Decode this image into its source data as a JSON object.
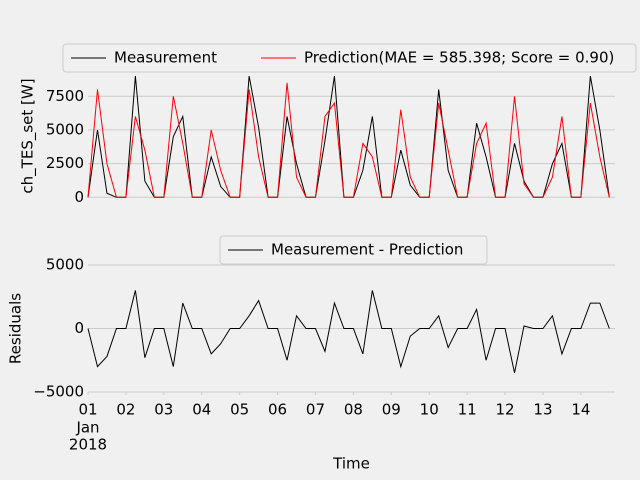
{
  "chart_data": [
    {
      "type": "line",
      "y_label": "ch_TES_set [W]",
      "x": [
        1,
        1.25,
        1.5,
        1.75,
        2,
        2.25,
        2.5,
        2.75,
        3,
        3.25,
        3.5,
        3.75,
        4,
        4.25,
        4.5,
        4.75,
        5,
        5.25,
        5.5,
        5.75,
        6,
        6.25,
        6.5,
        6.75,
        7,
        7.25,
        7.5,
        7.75,
        8,
        8.25,
        8.5,
        8.75,
        9,
        9.25,
        9.5,
        9.75,
        10,
        10.25,
        10.5,
        10.75,
        11,
        11.25,
        11.5,
        11.75,
        12,
        12.25,
        12.5,
        12.75,
        13,
        13.25,
        13.5,
        13.75,
        14,
        14.25,
        14.5,
        14.75
      ],
      "series": [
        {
          "name": "Measurement",
          "color": "#000000",
          "values": [
            0,
            5000,
            300,
            0,
            0,
            9000,
            1200,
            0,
            0,
            4500,
            6000,
            0,
            0,
            3000,
            800,
            0,
            0,
            9000,
            5200,
            0,
            0,
            6000,
            2500,
            0,
            0,
            4200,
            9000,
            0,
            0,
            2000,
            6000,
            0,
            0,
            3500,
            900,
            0,
            0,
            8000,
            2000,
            0,
            0,
            5500,
            3000,
            0,
            0,
            4000,
            1200,
            0,
            0,
            2500,
            4000,
            0,
            0,
            9000,
            5000,
            0
          ]
        },
        {
          "name": "Prediction(MAE = 585.398; Score = 0.90)",
          "color": "#ff0000",
          "values": [
            0,
            8000,
            2500,
            0,
            0,
            6000,
            3500,
            0,
            0,
            7500,
            4000,
            0,
            0,
            5000,
            2000,
            0,
            0,
            8000,
            3000,
            0,
            0,
            8500,
            1500,
            0,
            0,
            6000,
            7000,
            0,
            0,
            4000,
            3000,
            0,
            0,
            6500,
            1500,
            0,
            0,
            7000,
            3500,
            0,
            0,
            4000,
            5500,
            0,
            0,
            7500,
            1000,
            0,
            0,
            1500,
            6000,
            0,
            0,
            7000,
            3000,
            0
          ]
        }
      ],
      "xlim": [
        1,
        14.9
      ],
      "ylim": [
        -200,
        9300
      ],
      "yticks": [
        0,
        2500,
        5000,
        7500
      ],
      "grid": true
    },
    {
      "type": "line",
      "y_label": "Residuals",
      "x_label": "Time",
      "x": [
        1,
        1.25,
        1.5,
        1.75,
        2,
        2.25,
        2.5,
        2.75,
        3,
        3.25,
        3.5,
        3.75,
        4,
        4.25,
        4.5,
        4.75,
        5,
        5.25,
        5.5,
        5.75,
        6,
        6.25,
        6.5,
        6.75,
        7,
        7.25,
        7.5,
        7.75,
        8,
        8.25,
        8.5,
        8.75,
        9,
        9.25,
        9.5,
        9.75,
        10,
        10.25,
        10.5,
        10.75,
        11,
        11.25,
        11.5,
        11.75,
        12,
        12.25,
        12.5,
        12.75,
        13,
        13.25,
        13.5,
        13.75,
        14,
        14.25,
        14.5,
        14.75
      ],
      "series": [
        {
          "name": "Measurement - Prediction",
          "color": "#000000",
          "values": [
            0,
            -3000,
            -2200,
            0,
            0,
            3000,
            -2300,
            0,
            0,
            -3000,
            2000,
            0,
            0,
            -2000,
            -1200,
            0,
            0,
            1000,
            2200,
            0,
            0,
            -2500,
            1000,
            0,
            0,
            -1800,
            2000,
            0,
            0,
            -2000,
            3000,
            0,
            0,
            -3000,
            -600,
            0,
            0,
            1000,
            -1500,
            0,
            0,
            1500,
            -2500,
            0,
            0,
            -3500,
            200,
            0,
            0,
            1000,
            -2000,
            0,
            0,
            2000,
            2000,
            0
          ]
        }
      ],
      "xlim": [
        1,
        14.9
      ],
      "ylim": [
        -5000,
        5000
      ],
      "yticks": [
        {
          "value": -5000,
          "label": "−5000"
        },
        0,
        5000
      ],
      "xticks": [
        {
          "value": 1,
          "label": "01"
        },
        {
          "value": 2,
          "label": "02"
        },
        {
          "value": 3,
          "label": "03"
        },
        {
          "value": 4,
          "label": "04"
        },
        {
          "value": 5,
          "label": "05"
        },
        {
          "value": 6,
          "label": "06"
        },
        {
          "value": 7,
          "label": "07"
        },
        {
          "value": 8,
          "label": "08"
        },
        {
          "value": 9,
          "label": "09"
        },
        {
          "value": 10,
          "label": "10"
        },
        {
          "value": 11,
          "label": "11"
        },
        {
          "value": 12,
          "label": "12"
        },
        {
          "value": 13,
          "label": "13"
        },
        {
          "value": 14,
          "label": "14"
        }
      ],
      "x_tick_sublabels": [
        "Jan",
        "2018"
      ],
      "grid": true
    }
  ]
}
